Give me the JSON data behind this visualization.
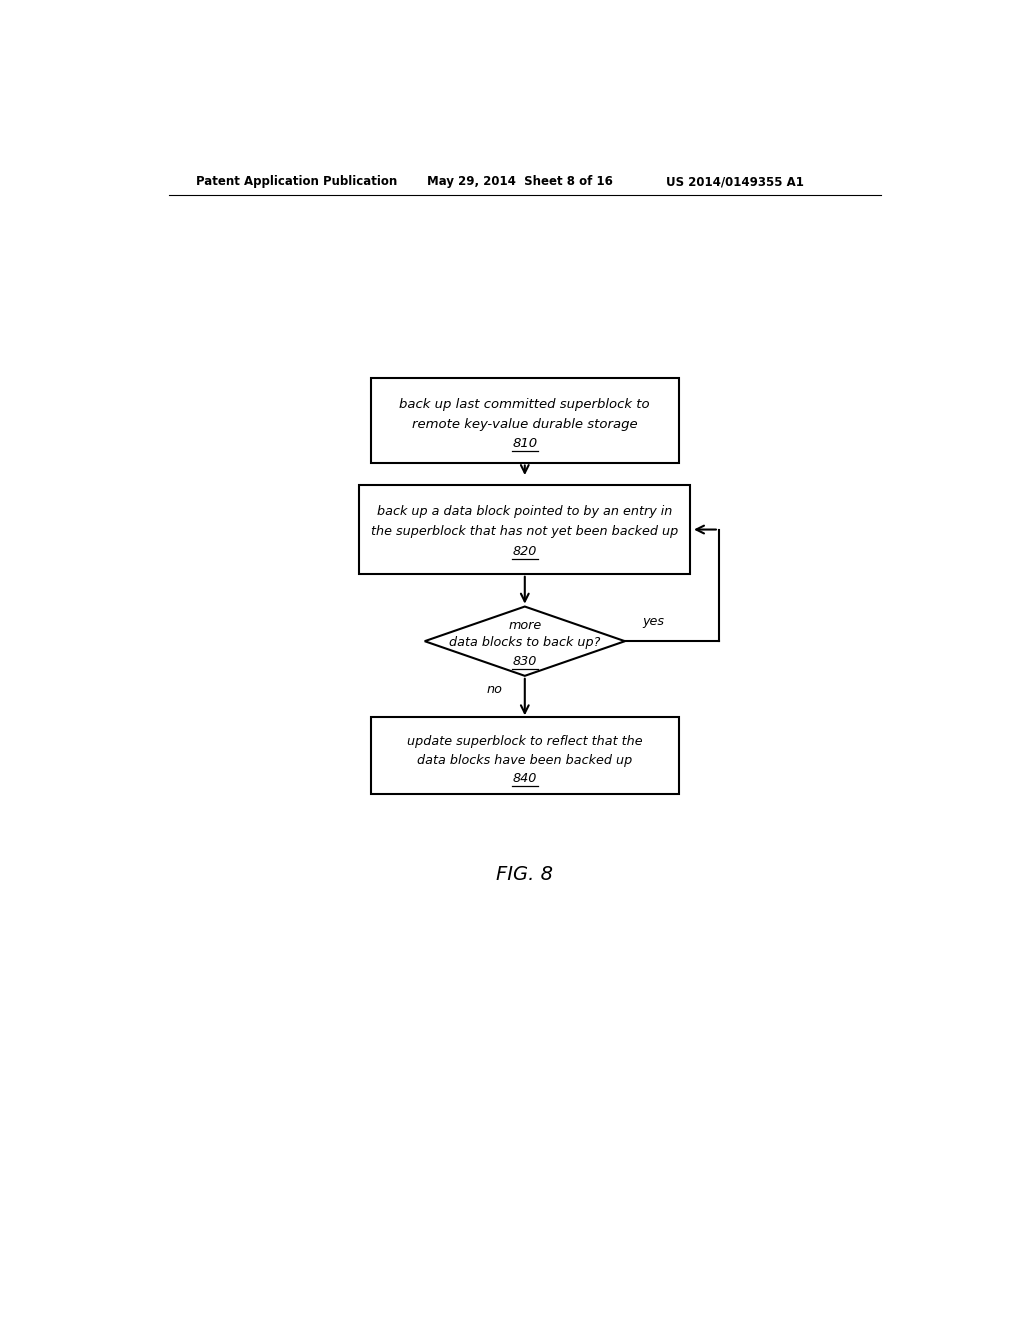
{
  "bg_color": "#ffffff",
  "header_left": "Patent Application Publication",
  "header_mid": "May 29, 2014  Sheet 8 of 16",
  "header_right": "US 2014/0149355 A1",
  "fig_label": "FIG. 8",
  "box810_lines": [
    "back up last committed superblock to",
    "remote key-value durable storage",
    "810"
  ],
  "box820_lines": [
    "back up a data block pointed to by an entry in",
    "the superblock that has not yet been backed up",
    "820"
  ],
  "diamond830_lines": [
    "more",
    "data blocks to back up?",
    "830"
  ],
  "box840_lines": [
    "update superblock to reflect that the",
    "data blocks have been backed up",
    "840"
  ],
  "yes_label": "yes",
  "no_label": "no"
}
